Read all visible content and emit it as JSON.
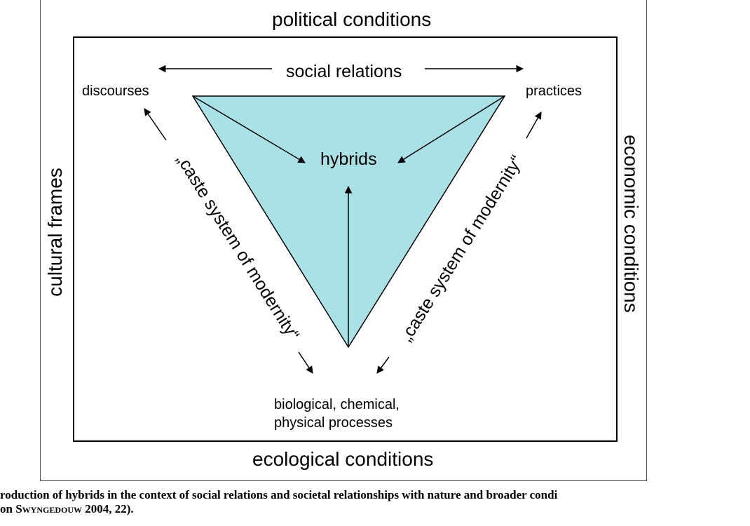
{
  "labels": {
    "top": "political conditions",
    "bottom": "ecological conditions",
    "left": "cultural frames",
    "right": "economic conditions",
    "social_relations": "social relations",
    "discourses": "discourses",
    "practices": "practices",
    "hybrids": "hybrids",
    "processes_line1": "biological, chemical,",
    "processes_line2": "physical processes",
    "caste_left": "„caste system of modernity“",
    "caste_right": "„caste system of modernity“"
  },
  "caption": {
    "line1": "roduction of hybrids in the context of social relations and societal relationships with nature and broader condi",
    "line2_prefix": "on ",
    "line2_author": "Swyngedouw",
    "line2_suffix": " 2004, 22)."
  },
  "colors": {
    "triangle_fill": "#a9e2e6",
    "stroke": "#000000"
  }
}
